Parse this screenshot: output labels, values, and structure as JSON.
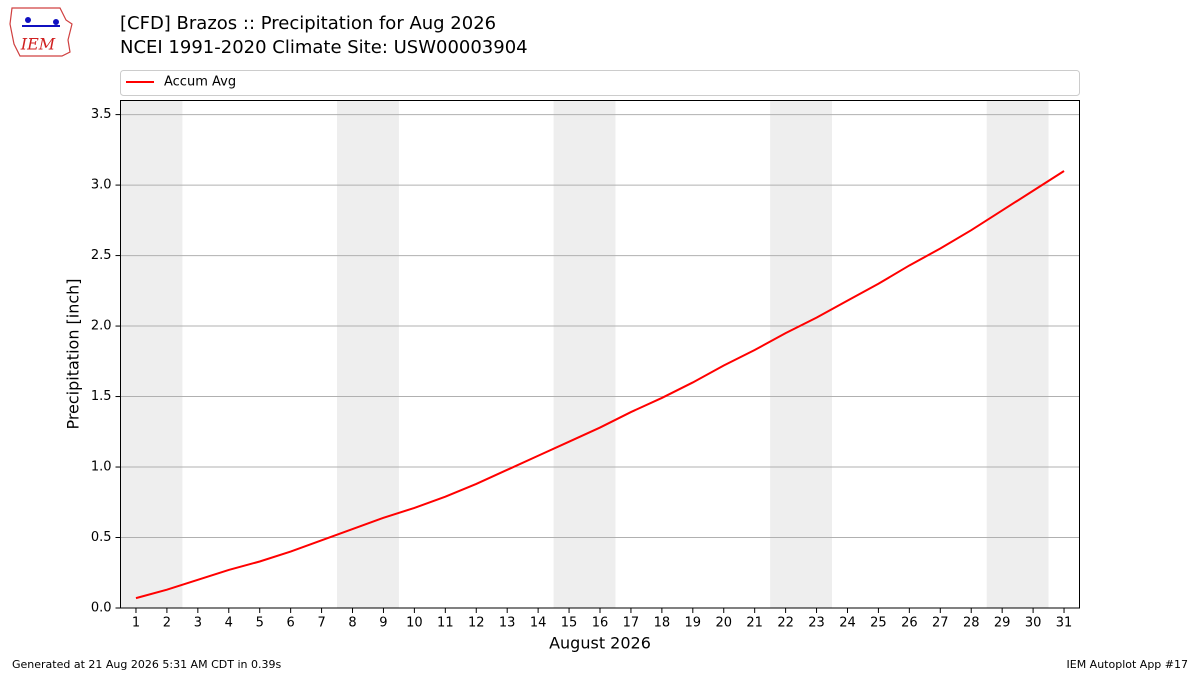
{
  "logo_text": "IEM",
  "footer_left": "Generated at 21 Aug 2026 5:31 AM CDT in 0.39s",
  "footer_right": "IEM Autoplot App #17",
  "chart_data": {
    "type": "line",
    "title": "[CFD] Brazos :: Precipitation for Aug 2026",
    "subtitle": "NCEI 1991-2020 Climate Site: USW00003904",
    "x_label": "August 2026",
    "y_label": "Precipitation [inch]",
    "x": [
      1,
      2,
      3,
      4,
      5,
      6,
      7,
      8,
      9,
      10,
      11,
      12,
      13,
      14,
      15,
      16,
      17,
      18,
      19,
      20,
      21,
      22,
      23,
      24,
      25,
      26,
      27,
      28,
      29,
      30,
      31
    ],
    "series": [
      {
        "name": "Accum Avg",
        "color": "#ff0000",
        "values": [
          0.07,
          0.13,
          0.2,
          0.27,
          0.33,
          0.4,
          0.48,
          0.56,
          0.64,
          0.71,
          0.79,
          0.88,
          0.98,
          1.08,
          1.18,
          1.28,
          1.39,
          1.49,
          1.6,
          1.72,
          1.83,
          1.95,
          2.06,
          2.18,
          2.3,
          2.43,
          2.55,
          2.68,
          2.82,
          2.96,
          3.1
        ]
      }
    ],
    "xlim": [
      0.5,
      31.5
    ],
    "xticks": [
      1,
      2,
      3,
      4,
      5,
      6,
      7,
      8,
      9,
      10,
      11,
      12,
      13,
      14,
      15,
      16,
      17,
      18,
      19,
      20,
      21,
      22,
      23,
      24,
      25,
      26,
      27,
      28,
      29,
      30,
      31
    ],
    "ylim": [
      0,
      3.6
    ],
    "yticks": [
      {
        "value": 0,
        "label": "0.0"
      },
      0.5,
      {
        "value": 1,
        "label": "1.0"
      },
      1.5,
      {
        "value": 2,
        "label": "2.0"
      },
      2.5,
      {
        "value": 3,
        "label": "3.0"
      },
      3.5
    ],
    "grid": true,
    "legend": "top"
  }
}
